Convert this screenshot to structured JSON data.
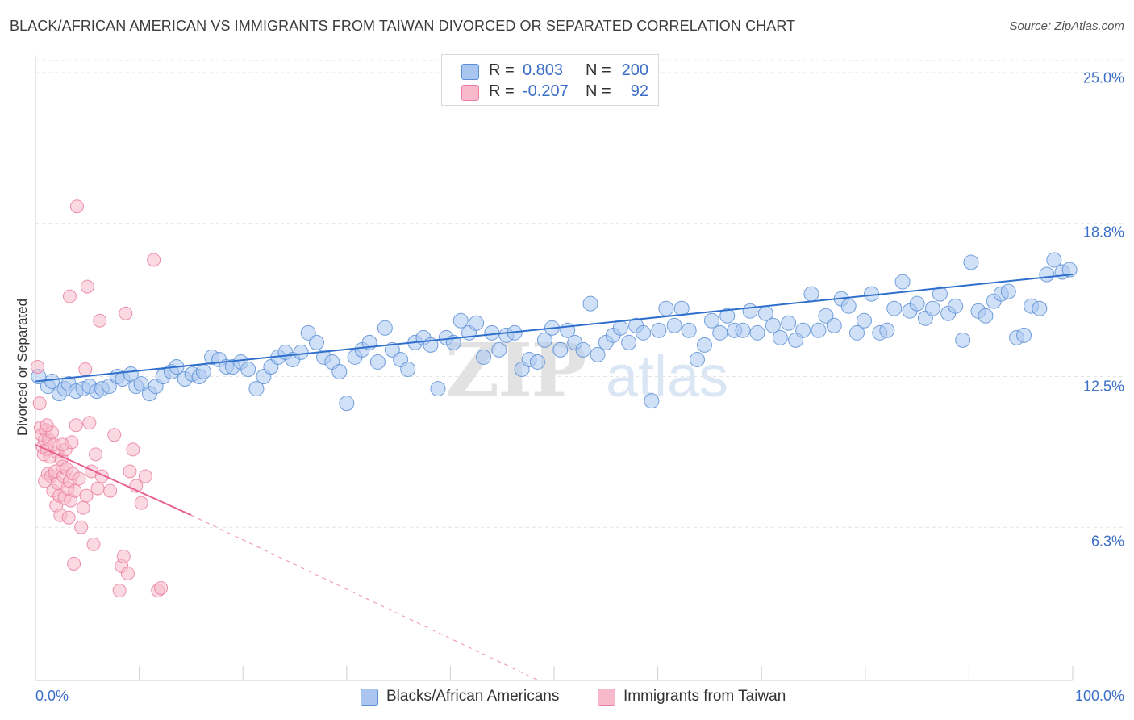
{
  "title": "BLACK/AFRICAN AMERICAN VS IMMIGRANTS FROM TAIWAN DIVORCED OR SEPARATED CORRELATION CHART",
  "source": "Source: ZipAtlas.com",
  "watermark": {
    "zip": "ZIP",
    "atlas": "atlas"
  },
  "colors": {
    "blue_fill": "#aac6f0",
    "blue_stroke": "#5b8fd6",
    "blue_line": "#2f6fcc",
    "pink_fill": "#f7b9cb",
    "pink_stroke": "#ea7fa0",
    "pink_line": "#e8608f",
    "tick_text": "#3b6fc7"
  },
  "legend": {
    "rows": [
      {
        "r_label": "R =",
        "r_value": "0.803",
        "n_label": "N =",
        "n_value": "200"
      },
      {
        "r_label": "R =",
        "r_value": "-0.207",
        "n_label": "N =",
        "n_value": "92"
      }
    ]
  },
  "chart_data": {
    "type": "scatter",
    "title": "BLACK/AFRICAN AMERICAN VS IMMIGRANTS FROM TAIWAN DIVORCED OR SEPARATED CORRELATION CHART",
    "xlabel": "",
    "ylabel": "Divorced or Separated",
    "xlim": [
      0,
      100
    ],
    "ylim": [
      0,
      25.5
    ],
    "x_tick_labels": [
      "0.0%",
      "100.0%"
    ],
    "y_ticks": [
      6.3,
      12.5,
      18.8,
      25.0
    ],
    "y_tick_labels": [
      "6.3%",
      "12.5%",
      "18.8%",
      "25.0%"
    ],
    "grid": true,
    "legend_position": "bottom",
    "series": [
      {
        "name": "Blacks/African Americans",
        "R": 0.803,
        "N": 200,
        "trend": {
          "x0": 0,
          "y0": 12.3,
          "x1": 100,
          "y1": 16.7
        },
        "points": [
          [
            0.3,
            12.5
          ],
          [
            1.2,
            12.1
          ],
          [
            1.6,
            12.3
          ],
          [
            2.3,
            11.8
          ],
          [
            2.8,
            12.0
          ],
          [
            3.2,
            12.2
          ],
          [
            3.9,
            11.9
          ],
          [
            4.6,
            12.0
          ],
          [
            5.2,
            12.1
          ],
          [
            5.9,
            11.9
          ],
          [
            6.4,
            12.0
          ],
          [
            7.1,
            12.1
          ],
          [
            7.9,
            12.5
          ],
          [
            8.4,
            12.4
          ],
          [
            9.2,
            12.6
          ],
          [
            9.7,
            12.1
          ],
          [
            10.2,
            12.2
          ],
          [
            11.0,
            11.8
          ],
          [
            11.6,
            12.1
          ],
          [
            12.3,
            12.5
          ],
          [
            13.1,
            12.7
          ],
          [
            13.6,
            12.9
          ],
          [
            14.4,
            12.4
          ],
          [
            15.1,
            12.6
          ],
          [
            15.8,
            12.5
          ],
          [
            16.2,
            12.7
          ],
          [
            17.0,
            13.3
          ],
          [
            17.7,
            13.2
          ],
          [
            18.4,
            12.9
          ],
          [
            19.0,
            12.9
          ],
          [
            19.8,
            13.1
          ],
          [
            20.5,
            12.8
          ],
          [
            21.3,
            12.0
          ],
          [
            22.0,
            12.5
          ],
          [
            22.7,
            12.9
          ],
          [
            23.4,
            13.3
          ],
          [
            24.1,
            13.5
          ],
          [
            24.8,
            13.2
          ],
          [
            25.6,
            13.5
          ],
          [
            26.3,
            14.3
          ],
          [
            27.1,
            13.9
          ],
          [
            27.8,
            13.3
          ],
          [
            28.6,
            13.1
          ],
          [
            29.3,
            12.7
          ],
          [
            30.0,
            11.4
          ],
          [
            30.8,
            13.3
          ],
          [
            31.5,
            13.6
          ],
          [
            32.2,
            13.9
          ],
          [
            33.0,
            13.1
          ],
          [
            33.7,
            14.5
          ],
          [
            34.4,
            13.6
          ],
          [
            35.2,
            13.2
          ],
          [
            35.9,
            12.8
          ],
          [
            36.6,
            13.9
          ],
          [
            37.4,
            14.1
          ],
          [
            38.1,
            13.8
          ],
          [
            38.8,
            12.0
          ],
          [
            39.6,
            14.1
          ],
          [
            40.3,
            13.9
          ],
          [
            41.0,
            14.8
          ],
          [
            41.8,
            14.3
          ],
          [
            42.5,
            14.7
          ],
          [
            43.2,
            13.3
          ],
          [
            44.0,
            14.3
          ],
          [
            44.7,
            13.6
          ],
          [
            45.4,
            14.2
          ],
          [
            46.2,
            14.3
          ],
          [
            46.9,
            12.8
          ],
          [
            47.6,
            13.2
          ],
          [
            48.4,
            13.1
          ],
          [
            49.1,
            14.0
          ],
          [
            49.8,
            14.5
          ],
          [
            50.6,
            13.6
          ],
          [
            51.3,
            14.4
          ],
          [
            52.0,
            13.9
          ],
          [
            52.8,
            13.6
          ],
          [
            53.5,
            15.5
          ],
          [
            54.2,
            13.4
          ],
          [
            55.0,
            13.9
          ],
          [
            55.7,
            14.2
          ],
          [
            56.4,
            14.5
          ],
          [
            57.2,
            13.9
          ],
          [
            57.9,
            14.6
          ],
          [
            58.6,
            14.3
          ],
          [
            59.4,
            11.5
          ],
          [
            60.1,
            14.4
          ],
          [
            60.8,
            15.3
          ],
          [
            61.6,
            14.6
          ],
          [
            62.3,
            15.3
          ],
          [
            63.0,
            14.4
          ],
          [
            63.8,
            13.2
          ],
          [
            64.5,
            13.8
          ],
          [
            65.2,
            14.8
          ],
          [
            66.0,
            14.3
          ],
          [
            66.7,
            15.0
          ],
          [
            67.4,
            14.4
          ],
          [
            68.2,
            14.4
          ],
          [
            68.9,
            15.2
          ],
          [
            69.6,
            14.3
          ],
          [
            70.4,
            15.1
          ],
          [
            71.1,
            14.6
          ],
          [
            71.8,
            14.1
          ],
          [
            72.6,
            14.7
          ],
          [
            73.3,
            14.0
          ],
          [
            74.0,
            14.4
          ],
          [
            74.8,
            15.9
          ],
          [
            75.5,
            14.4
          ],
          [
            76.2,
            15.0
          ],
          [
            77.0,
            14.6
          ],
          [
            77.7,
            15.7
          ],
          [
            78.4,
            15.4
          ],
          [
            79.2,
            14.3
          ],
          [
            79.9,
            14.8
          ],
          [
            80.6,
            15.9
          ],
          [
            81.4,
            14.3
          ],
          [
            82.1,
            14.4
          ],
          [
            82.8,
            15.3
          ],
          [
            83.6,
            16.4
          ],
          [
            84.3,
            15.2
          ],
          [
            85.0,
            15.5
          ],
          [
            85.8,
            14.9
          ],
          [
            86.5,
            15.3
          ],
          [
            87.2,
            15.9
          ],
          [
            88.0,
            15.1
          ],
          [
            88.7,
            15.4
          ],
          [
            89.4,
            14.0
          ],
          [
            90.2,
            17.2
          ],
          [
            90.9,
            15.2
          ],
          [
            91.6,
            15.0
          ],
          [
            92.4,
            15.6
          ],
          [
            93.1,
            15.9
          ],
          [
            93.8,
            16.0
          ],
          [
            94.6,
            14.1
          ],
          [
            95.3,
            14.2
          ],
          [
            96.0,
            15.4
          ],
          [
            96.8,
            15.3
          ],
          [
            97.5,
            16.7
          ],
          [
            98.2,
            17.3
          ],
          [
            99.0,
            16.8
          ],
          [
            99.7,
            16.9
          ]
        ]
      },
      {
        "name": "Immigrants from Taiwan",
        "R": -0.207,
        "N": 92,
        "trend": {
          "x0": 0,
          "y0": 9.7,
          "x1": 15,
          "y1": 6.8
        },
        "trend_dashed_to": {
          "x": 48.5,
          "y": 0
        },
        "points": [
          [
            0.2,
            12.9
          ],
          [
            0.4,
            11.4
          ],
          [
            0.5,
            10.4
          ],
          [
            0.6,
            10.1
          ],
          [
            0.7,
            9.6
          ],
          [
            0.8,
            9.3
          ],
          [
            0.9,
            9.9
          ],
          [
            1.0,
            10.3
          ],
          [
            1.1,
            9.5
          ],
          [
            1.2,
            8.5
          ],
          [
            1.3,
            9.9
          ],
          [
            1.4,
            9.2
          ],
          [
            1.5,
            8.4
          ],
          [
            1.6,
            10.2
          ],
          [
            1.7,
            7.8
          ],
          [
            1.8,
            9.7
          ],
          [
            1.9,
            8.6
          ],
          [
            2.0,
            7.2
          ],
          [
            2.1,
            9.4
          ],
          [
            2.2,
            8.1
          ],
          [
            2.3,
            7.6
          ],
          [
            2.4,
            6.8
          ],
          [
            2.5,
            9.1
          ],
          [
            2.6,
            8.8
          ],
          [
            2.7,
            8.4
          ],
          [
            2.8,
            7.5
          ],
          [
            2.9,
            9.5
          ],
          [
            3.0,
            8.7
          ],
          [
            3.1,
            7.9
          ],
          [
            3.2,
            6.7
          ],
          [
            3.3,
            8.2
          ],
          [
            3.4,
            7.4
          ],
          [
            3.5,
            9.8
          ],
          [
            3.6,
            8.5
          ],
          [
            3.7,
            4.8
          ],
          [
            3.8,
            7.8
          ],
          [
            3.9,
            10.5
          ],
          [
            4.0,
            19.5
          ],
          [
            4.2,
            8.3
          ],
          [
            4.4,
            6.3
          ],
          [
            4.6,
            7.1
          ],
          [
            4.8,
            12.8
          ],
          [
            5.0,
            16.2
          ],
          [
            5.2,
            10.6
          ],
          [
            5.4,
            8.6
          ],
          [
            5.6,
            5.6
          ],
          [
            5.8,
            9.3
          ],
          [
            6.0,
            7.9
          ],
          [
            6.2,
            14.8
          ],
          [
            6.4,
            8.4
          ],
          [
            7.2,
            7.8
          ],
          [
            7.6,
            10.1
          ],
          [
            8.1,
            3.7
          ],
          [
            8.3,
            4.7
          ],
          [
            8.5,
            5.1
          ],
          [
            8.7,
            15.1
          ],
          [
            8.9,
            4.4
          ],
          [
            9.1,
            8.6
          ],
          [
            9.4,
            9.5
          ],
          [
            9.7,
            8.0
          ],
          [
            10.2,
            7.3
          ],
          [
            10.6,
            8.4
          ],
          [
            11.4,
            17.3
          ],
          [
            11.8,
            3.7
          ],
          [
            12.1,
            3.8
          ],
          [
            1.1,
            10.5
          ],
          [
            2.6,
            9.7
          ],
          [
            0.9,
            8.2
          ],
          [
            3.3,
            15.8
          ],
          [
            4.9,
            7.6
          ]
        ]
      }
    ]
  },
  "bottom_legend": [
    {
      "label": "Blacks/African Americans"
    },
    {
      "label": "Immigrants from Taiwan"
    }
  ]
}
